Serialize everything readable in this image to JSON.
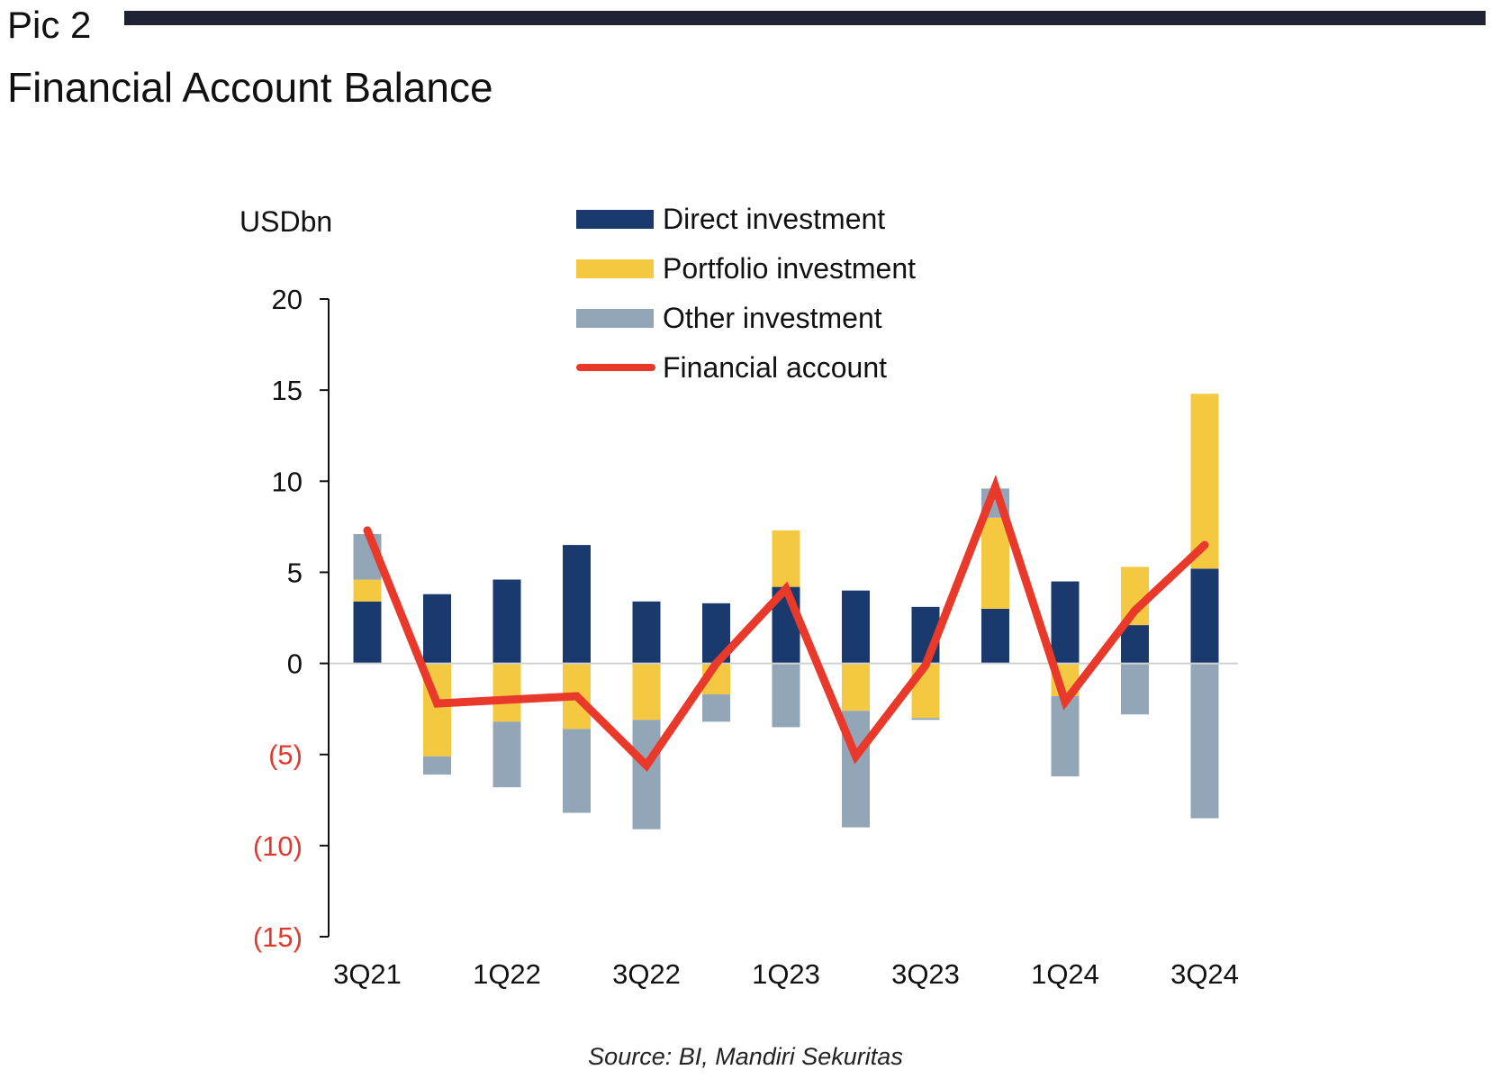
{
  "header": {
    "pic_label": "Pic 2",
    "title": "Financial Account Balance"
  },
  "source": "Source: BI, Mandiri Sekuritas",
  "colors": {
    "direct": "#1a3a6e",
    "portfolio": "#f5c842",
    "other": "#93a6b8",
    "financial": "#e8392b",
    "negative_tick": "#e03a2e",
    "rule": "#1f2233"
  },
  "chart_data": {
    "type": "bar",
    "stacked": true,
    "ylabel": "USDbn",
    "ylim": [
      -15,
      20
    ],
    "yticks": [
      {
        "value": 20,
        "label": "20"
      },
      {
        "value": 15,
        "label": "15"
      },
      {
        "value": 10,
        "label": "10"
      },
      {
        "value": 5,
        "label": "5"
      },
      {
        "value": 0,
        "label": "0"
      },
      {
        "value": -5,
        "label": "(5)"
      },
      {
        "value": -10,
        "label": "(10)"
      },
      {
        "value": -15,
        "label": "(15)"
      }
    ],
    "categories": [
      "3Q21",
      "4Q21",
      "1Q22",
      "2Q22",
      "3Q22",
      "4Q22",
      "1Q23",
      "2Q23",
      "3Q23",
      "4Q23",
      "1Q24",
      "2Q24",
      "3Q24"
    ],
    "tick_labels": [
      "3Q21",
      "",
      "1Q22",
      "",
      "3Q22",
      "",
      "1Q23",
      "",
      "3Q23",
      "",
      "1Q24",
      "",
      "3Q24"
    ],
    "legend_position": "top-center",
    "grid": false,
    "series": [
      {
        "name": "Direct investment",
        "kind": "bar",
        "values": [
          3.4,
          3.8,
          4.6,
          6.5,
          3.4,
          3.3,
          4.2,
          4.0,
          3.1,
          3.0,
          4.5,
          2.1,
          5.2
        ]
      },
      {
        "name": "Portfolio investment",
        "kind": "bar",
        "values": [
          1.2,
          -5.1,
          -3.2,
          -3.6,
          -3.1,
          -1.7,
          3.1,
          -2.6,
          -3.0,
          5.0,
          -1.8,
          3.2,
          9.6
        ]
      },
      {
        "name": "Other investment",
        "kind": "bar",
        "values": [
          2.5,
          -1.0,
          -3.6,
          -4.6,
          -6.0,
          -1.5,
          -3.5,
          -6.4,
          -0.1,
          1.6,
          -4.4,
          -2.8,
          -8.5
        ]
      },
      {
        "name": "Financial account",
        "kind": "line",
        "values": [
          7.3,
          -2.2,
          -2.0,
          -1.8,
          -5.6,
          0.0,
          4.1,
          -5.1,
          -0.1,
          9.7,
          -2.1,
          2.9,
          6.5
        ]
      }
    ]
  }
}
